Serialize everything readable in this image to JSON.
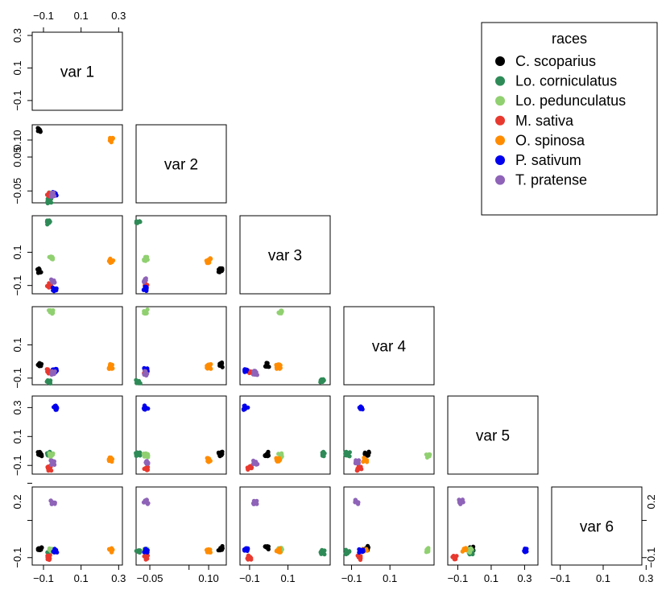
{
  "chart_data": {
    "type": "scatter",
    "title": "",
    "diag_labels": [
      "var 1",
      "var 2",
      "var 3",
      "var 4",
      "var 5",
      "var 6"
    ],
    "ticks": {
      "var1": [
        -0.1,
        0.1,
        0.3
      ],
      "var2": [
        -0.05,
        0.05,
        0.1
      ],
      "var3": [
        -0.1,
        0.1
      ],
      "var4": [
        -0.1,
        0.1
      ],
      "var5": [
        -0.1,
        0.1,
        0.3
      ],
      "var6": [
        -0.1,
        0.1,
        0.3
      ]
    },
    "tick_labels": {
      "top_x": [
        "-0.1",
        "0.1",
        "0.3"
      ],
      "left_y": {
        "row1": [
          "-0.1",
          "0.1",
          "0.3"
        ],
        "row2": [
          "-0.05",
          "0.05",
          "0.10"
        ],
        "row3": [
          "-0.1",
          "0.1"
        ],
        "row4": [
          "-0.1",
          "0.1"
        ],
        "row5": [
          "-0.1",
          "0.1",
          "0.3"
        ],
        "row6": [
          "-0.1",
          "0.2"
        ]
      },
      "bottom_x": {
        "col1": [
          "-0.1",
          "0.1",
          "0.3"
        ],
        "col2": [
          "-0.05",
          "0.10"
        ],
        "col3": [
          "-0.1",
          "0.1"
        ],
        "col4": [
          "-0.1",
          "0.1"
        ],
        "col5": [
          "-0.1",
          "0.1",
          "0.3"
        ],
        "col6": [
          "-0.1",
          "0.1",
          "0.3"
        ]
      },
      "right_y": [
        "-0.1",
        "0.2"
      ]
    },
    "legend": {
      "title": "races",
      "placement": "top-right",
      "entries": [
        {
          "label": "C. scoparius",
          "color": "#000000"
        },
        {
          "label": "Lo. corniculatus",
          "color": "#2e8b57"
        },
        {
          "label": "Lo. pedunculatus",
          "color": "#90d070"
        },
        {
          "label": "M. sativa",
          "color": "#e8392f"
        },
        {
          "label": "O. spinosa",
          "color": "#ff8c00"
        },
        {
          "label": "P. sativum",
          "color": "#0000ee"
        },
        {
          "label": "T. pratense",
          "color": "#8e63b8"
        }
      ]
    },
    "groups": {
      "C. scoparius": {
        "var1": -0.12,
        "var2": 0.13,
        "var3": -0.01,
        "var4": -0.02,
        "var5": -0.02,
        "var6": -0.05
      },
      "Lo. corniculatus": {
        "var1": -0.07,
        "var2": -0.08,
        "var3": 0.28,
        "var4": -0.12,
        "var5": -0.02,
        "var6": -0.07
      },
      "Lo. pedunculatus": {
        "var1": -0.06,
        "var2": -0.06,
        "var3": 0.06,
        "var4": 0.3,
        "var5": -0.03,
        "var6": -0.06
      },
      "M. sativa": {
        "var1": -0.07,
        "var2": -0.06,
        "var3": -0.1,
        "var4": -0.06,
        "var5": -0.12,
        "var6": -0.1
      },
      "O. spinosa": {
        "var1": 0.26,
        "var2": 0.1,
        "var3": 0.05,
        "var4": -0.03,
        "var5": -0.06,
        "var6": -0.06
      },
      "P. sativum": {
        "var1": -0.04,
        "var2": -0.06,
        "var3": -0.12,
        "var4": -0.05,
        "var5": 0.3,
        "var6": -0.06
      },
      "T. pratense": {
        "var1": -0.05,
        "var2": -0.06,
        "var3": -0.07,
        "var4": -0.07,
        "var5": -0.08,
        "var6": 0.2
      }
    }
  }
}
